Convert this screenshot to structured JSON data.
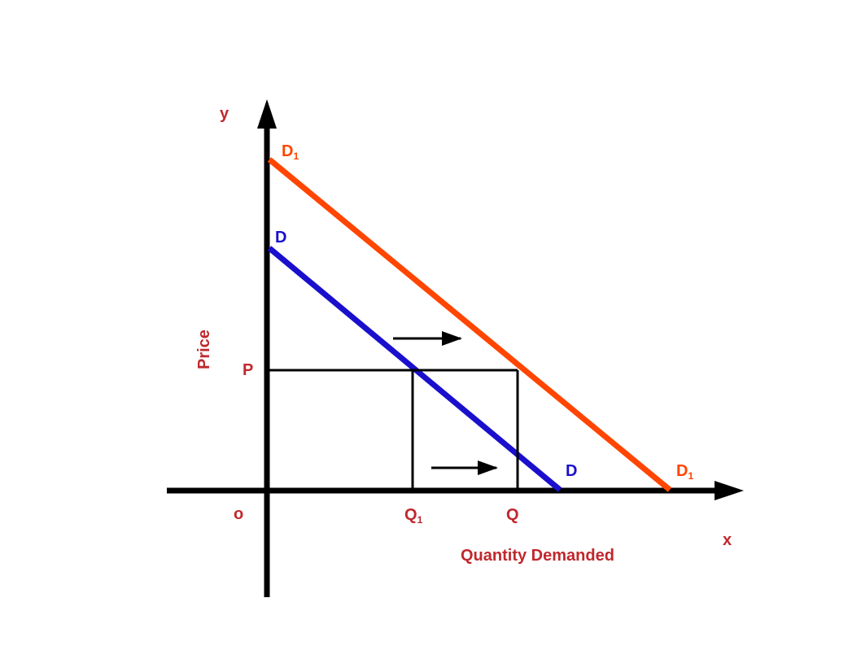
{
  "axes": {
    "y_label": "y",
    "x_label": "x",
    "origin_label": "o",
    "price_label": "Price",
    "quantity_label": "Quantity Demanded"
  },
  "curves": {
    "new_demand": {
      "label_main": "D",
      "label_sub": "1",
      "color": "#ff4500"
    },
    "old_demand": {
      "label": "D",
      "color": "#1a0fcc"
    }
  },
  "levels": {
    "price": "P",
    "q1_main": "Q",
    "q1_sub": "1",
    "q": "Q"
  },
  "colors": {
    "label_red": "#c0282d",
    "axis": "#000000"
  }
}
